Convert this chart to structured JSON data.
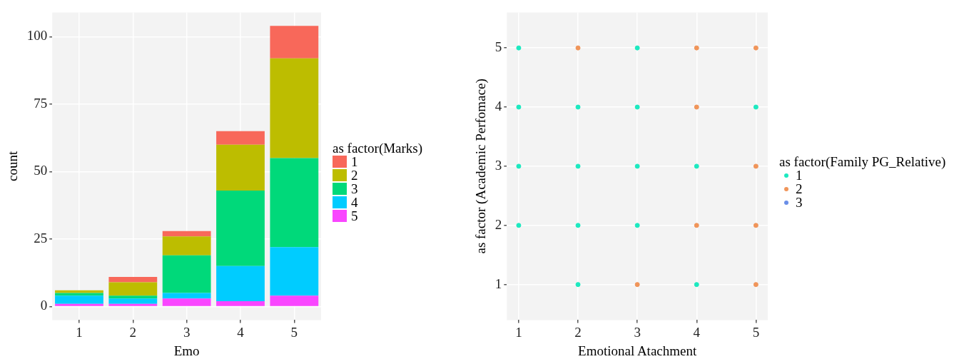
{
  "chart_data": [
    {
      "type": "bar",
      "xlabel": "Emo",
      "ylabel": "count",
      "legend_title": "as factor(Marks)",
      "categories": [
        "1",
        "2",
        "3",
        "4",
        "5"
      ],
      "stacked": true,
      "ylim": [
        -5,
        109
      ],
      "yticks": [
        0,
        25,
        50,
        75,
        100
      ],
      "grid": true,
      "legend": "right",
      "series": [
        {
          "name": "5",
          "color": "#f946ff",
          "values": [
            1,
            1,
            3,
            2,
            4
          ]
        },
        {
          "name": "4",
          "color": "#00ccff",
          "values": [
            3,
            2,
            2,
            13,
            18
          ]
        },
        {
          "name": "3",
          "color": "#00d97a",
          "values": [
            1,
            1,
            14,
            28,
            33
          ]
        },
        {
          "name": "2",
          "color": "#bdbd00",
          "values": [
            1,
            5,
            7,
            17,
            37
          ]
        },
        {
          "name": "1",
          "color": "#f8685a",
          "values": [
            0,
            2,
            2,
            5,
            12
          ]
        }
      ]
    },
    {
      "type": "scatter",
      "xlabel": "Emotional Atachment",
      "ylabel": "as factor (Academic Perfomace)",
      "legend_title": "as factor(Family PG_Relative)",
      "xlim": [
        0.8,
        5.2
      ],
      "xticks": [
        1,
        2,
        3,
        4,
        5
      ],
      "ylim": [
        0.4,
        5.6
      ],
      "yticks": [
        1,
        2,
        3,
        4,
        5
      ],
      "grid": true,
      "legend": "right",
      "marker": "circle",
      "series": [
        {
          "name": "1",
          "color": "#1de9c0",
          "x": [
            1,
            3,
            1,
            2,
            3,
            5,
            1,
            2,
            3,
            4,
            1,
            2,
            3,
            2,
            4
          ],
          "values": [
            5,
            5,
            4,
            4,
            4,
            4,
            3,
            3,
            3,
            3,
            2,
            2,
            2,
            1,
            1
          ]
        },
        {
          "name": "2",
          "color": "#f0955a",
          "x": [
            2,
            4,
            5,
            4,
            5,
            4,
            5,
            3,
            5
          ],
          "values": [
            5,
            5,
            5,
            4,
            3,
            2,
            2,
            1,
            1
          ]
        },
        {
          "name": "3",
          "color": "#6a8fe8"
        }
      ]
    }
  ]
}
